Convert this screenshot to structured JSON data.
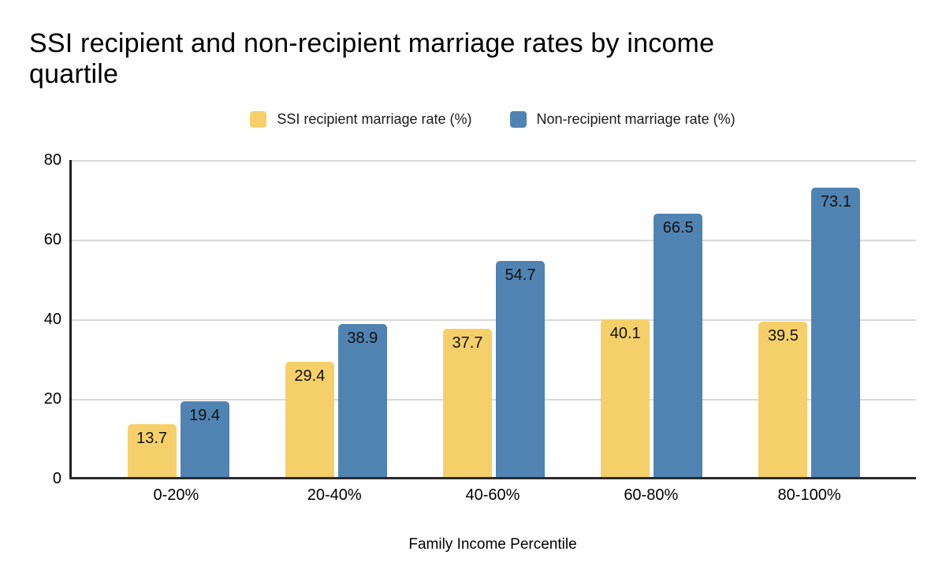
{
  "title": "SSI recipient and non-recipient marriage rates by income\nquartile",
  "chart_data": {
    "type": "bar",
    "title": "SSI recipient and non-recipient marriage rates by income quartile",
    "categories": [
      "0-20%",
      "20-40%",
      "40-60%",
      "60-80%",
      "80-100%"
    ],
    "series": [
      {
        "name": "SSI recipient marriage rate (%)",
        "color": "#f5d06a",
        "values": [
          13.7,
          29.4,
          37.7,
          40.1,
          39.5
        ]
      },
      {
        "name": "Non-recipient marriage rate (%)",
        "color": "#5083b2",
        "values": [
          19.4,
          38.9,
          54.7,
          66.5,
          73.1
        ]
      }
    ],
    "xlabel": "Family Income Percentile",
    "ylabel": "",
    "ylim": [
      0,
      80
    ],
    "yticks": [
      0,
      20,
      40,
      60,
      80
    ],
    "grid": true,
    "legend_position": "top",
    "value_labels": true
  },
  "colors": {
    "background": "#ffffff",
    "axis": "#2b2b2b",
    "gridline": "#d9d9d9",
    "text": "#000000",
    "bar_label": "#111111"
  }
}
